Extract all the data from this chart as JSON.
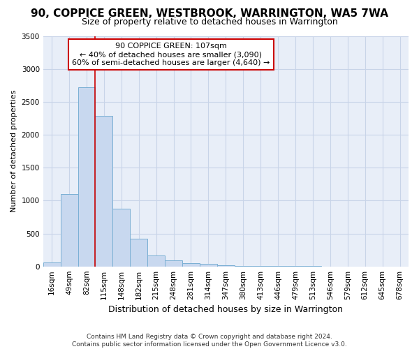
{
  "title": "90, COPPICE GREEN, WESTBROOK, WARRINGTON, WA5 7WA",
  "subtitle": "Size of property relative to detached houses in Warrington",
  "xlabel": "Distribution of detached houses by size in Warrington",
  "ylabel": "Number of detached properties",
  "footer_line1": "Contains HM Land Registry data © Crown copyright and database right 2024.",
  "footer_line2": "Contains public sector information licensed under the Open Government Licence v3.0.",
  "categories": [
    "16sqm",
    "49sqm",
    "82sqm",
    "115sqm",
    "148sqm",
    "182sqm",
    "215sqm",
    "248sqm",
    "281sqm",
    "314sqm",
    "347sqm",
    "380sqm",
    "413sqm",
    "446sqm",
    "479sqm",
    "513sqm",
    "546sqm",
    "579sqm",
    "612sqm",
    "645sqm",
    "678sqm"
  ],
  "values": [
    55,
    1100,
    2720,
    2290,
    880,
    420,
    165,
    90,
    50,
    35,
    20,
    10,
    5,
    3,
    2,
    2,
    1,
    1,
    1,
    1,
    1
  ],
  "bar_color": "#c8d8ef",
  "bar_edge_color": "#7aafd4",
  "grid_color": "#c8d4e8",
  "plot_bg_color": "#e8eef8",
  "fig_bg_color": "#ffffff",
  "vline_color": "#cc0000",
  "vline_x": 2.5,
  "annotation_title": "90 COPPICE GREEN: 107sqm",
  "annotation_line1": "← 40% of detached houses are smaller (3,090)",
  "annotation_line2": "60% of semi-detached houses are larger (4,640) →",
  "annotation_box_color": "#ffffff",
  "annotation_box_edge": "#cc0000",
  "ylim": [
    0,
    3500
  ],
  "yticks": [
    0,
    500,
    1000,
    1500,
    2000,
    2500,
    3000,
    3500
  ],
  "title_fontsize": 11,
  "subtitle_fontsize": 9,
  "ylabel_fontsize": 8,
  "xlabel_fontsize": 9,
  "tick_fontsize": 7.5,
  "footer_fontsize": 6.5
}
